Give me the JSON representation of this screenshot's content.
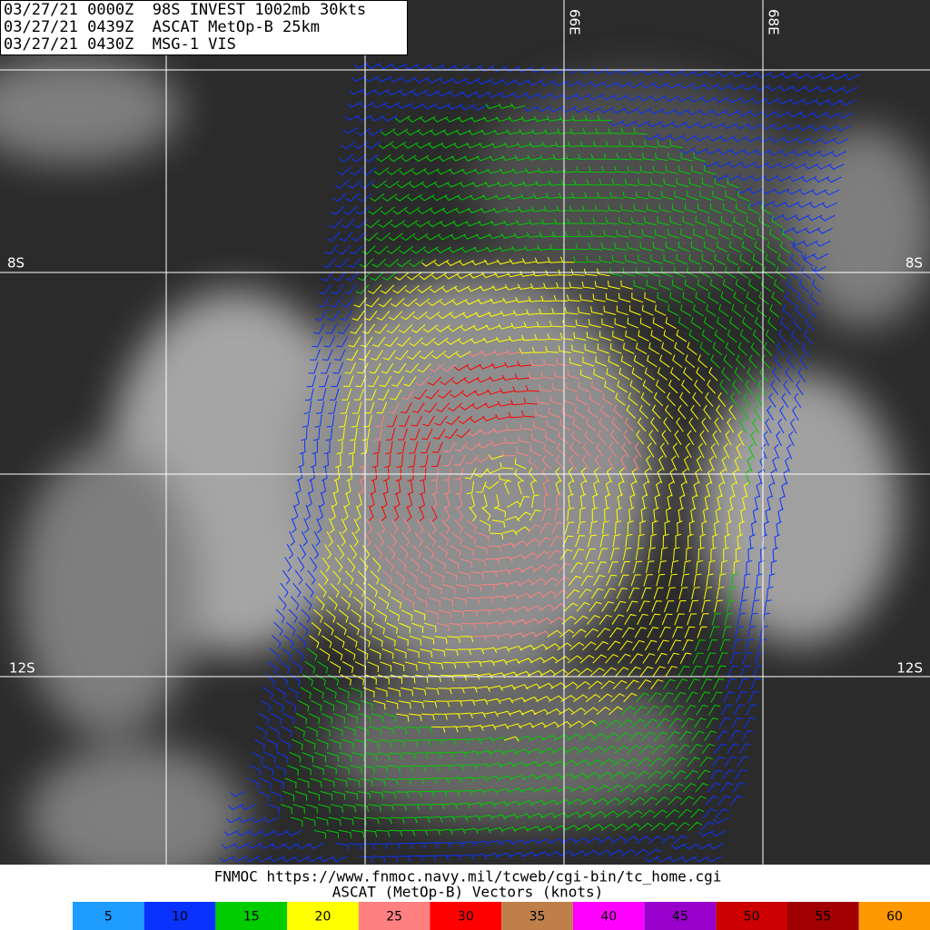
{
  "header": {
    "lines": [
      "03/27/21 0000Z  98S INVEST 1002mb 30kts",
      "03/27/21 0439Z  ASCAT MetOp-B 25km",
      "03/27/21 0430Z  MSG-1 VIS"
    ]
  },
  "grid": {
    "latitude_labels": [
      "8S",
      "12S"
    ],
    "longitude_labels": [
      "66E",
      "68E"
    ]
  },
  "footer": {
    "source": "FNMOC https://www.fnmoc.navy.mil/tcweb/cgi-bin/tc_home.cgi",
    "caption": "ASCAT (MetOp-B) Vectors (knots)"
  },
  "legend": {
    "items": [
      {
        "value": 5,
        "color": "#1e9bff"
      },
      {
        "value": 10,
        "color": "#0a32ff"
      },
      {
        "value": 15,
        "color": "#00cc00"
      },
      {
        "value": 20,
        "color": "#ffff00"
      },
      {
        "value": 25,
        "color": "#ff8080"
      },
      {
        "value": 30,
        "color": "#ff0000"
      },
      {
        "value": 35,
        "color": "#bf7f4a"
      },
      {
        "value": 40,
        "color": "#ff00ff"
      },
      {
        "value": 45,
        "color": "#9900cc"
      },
      {
        "value": 50,
        "color": "#cc0000"
      },
      {
        "value": 55,
        "color": "#a00000"
      },
      {
        "value": 60,
        "color": "#ff9900"
      }
    ]
  }
}
